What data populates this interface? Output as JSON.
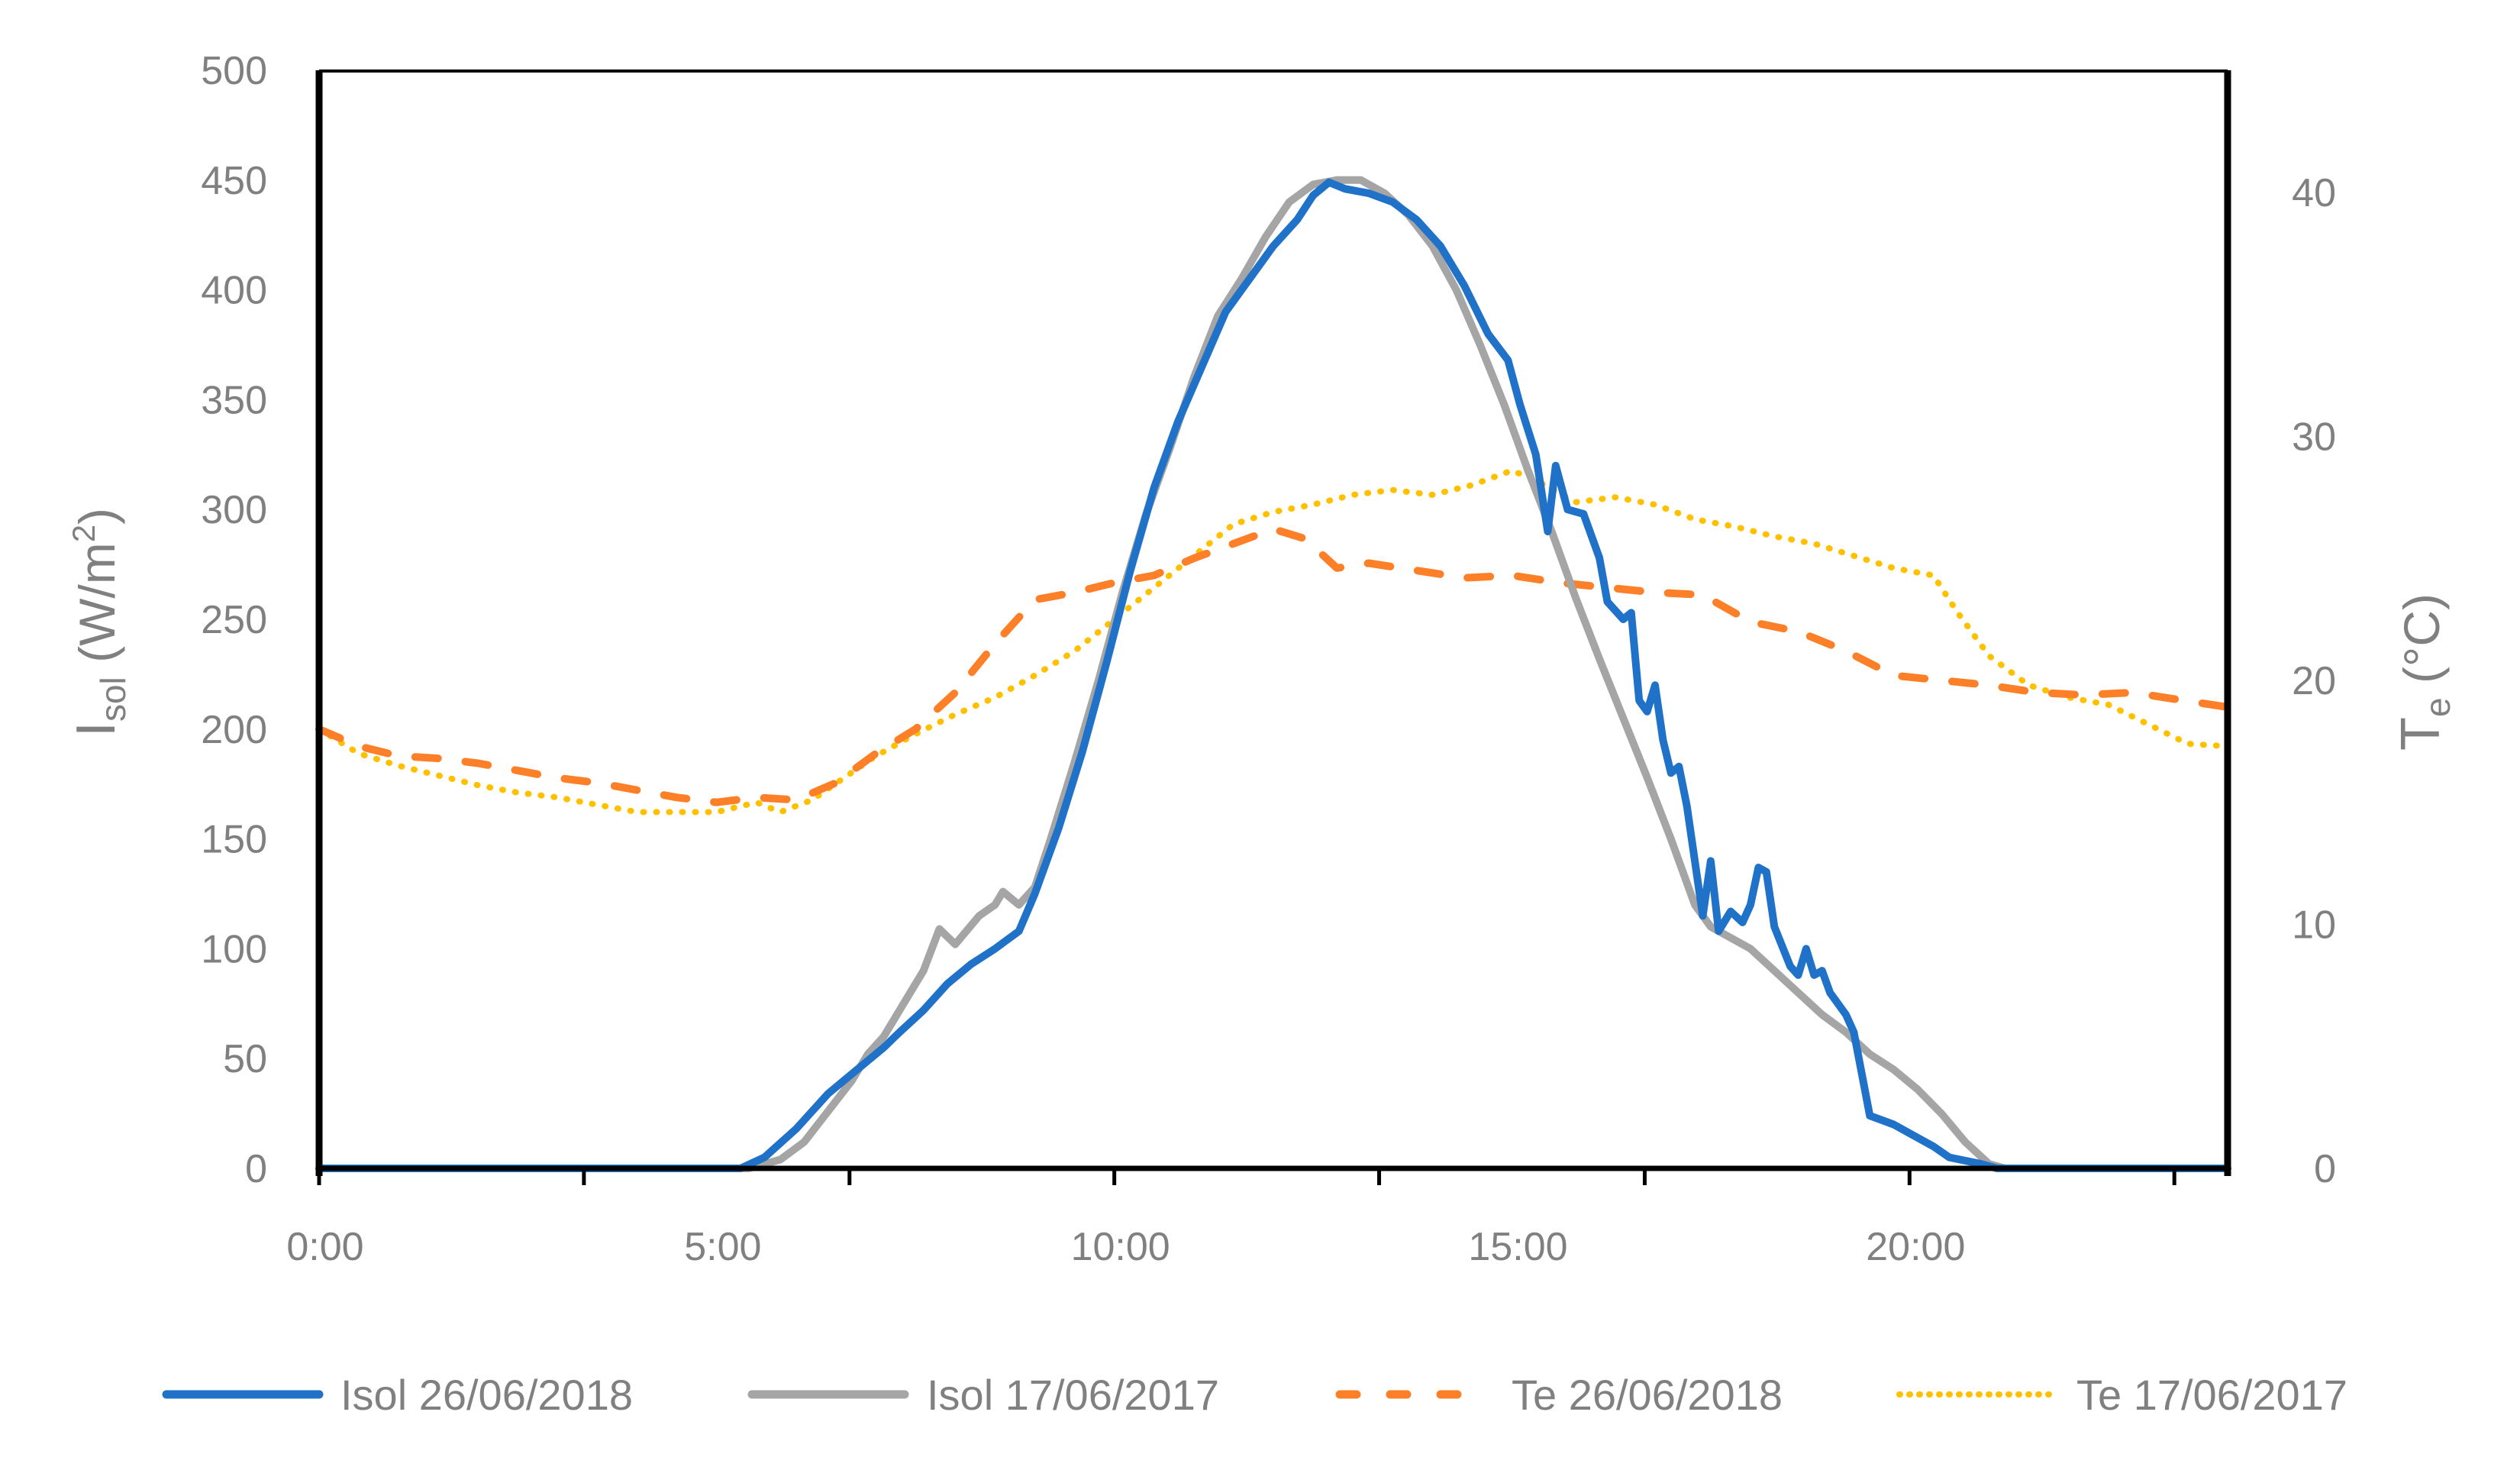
{
  "chart_data": {
    "type": "line",
    "title": "",
    "xlabel": "",
    "ylabel": "Isol (W/m²)",
    "ylabel_main": "I",
    "ylabel_sub": "sol",
    "ylabel_unit": " (W/m",
    "ylabel_sup": "2",
    "ylabel_close": ")",
    "y2label": "Te (°C)",
    "y2label_main": "T",
    "y2label_sub": "e",
    "y2label_unit": "  (°C)",
    "xlim": [
      0,
      24
    ],
    "ylim": [
      0,
      500
    ],
    "y2lim": [
      0,
      45
    ],
    "x_tick_labels": [
      "0:00",
      "5:00",
      "10:00",
      "15:00",
      "20:00"
    ],
    "x_tick_label_hours": [
      0,
      5,
      10,
      15,
      20
    ],
    "x_tick_mark_hours": [
      0,
      3.33,
      6.67,
      10,
      13.33,
      16.67,
      20,
      23.33
    ],
    "y_ticks": [
      0,
      50,
      100,
      150,
      200,
      250,
      300,
      350,
      400,
      450,
      500
    ],
    "y2_ticks": [
      0,
      10,
      20,
      30,
      40
    ],
    "grid": false,
    "legend_position": "bottom",
    "series": [
      {
        "name": "Isol 26/06/2018",
        "axis": "left",
        "color": "#1f72c8",
        "style": "solid",
        "points": [
          [
            0,
            0
          ],
          [
            5.3,
            0
          ],
          [
            5.6,
            5
          ],
          [
            6.0,
            18
          ],
          [
            6.4,
            34
          ],
          [
            6.8,
            46
          ],
          [
            7.1,
            55
          ],
          [
            7.3,
            62
          ],
          [
            7.6,
            72
          ],
          [
            7.9,
            84
          ],
          [
            8.2,
            93
          ],
          [
            8.5,
            100
          ],
          [
            8.8,
            108
          ],
          [
            9.0,
            125
          ],
          [
            9.3,
            155
          ],
          [
            9.6,
            190
          ],
          [
            9.9,
            230
          ],
          [
            10.2,
            272
          ],
          [
            10.5,
            310
          ],
          [
            10.8,
            340
          ],
          [
            11.1,
            365
          ],
          [
            11.4,
            390
          ],
          [
            11.7,
            405
          ],
          [
            12.0,
            420
          ],
          [
            12.3,
            432
          ],
          [
            12.5,
            443
          ],
          [
            12.7,
            449
          ],
          [
            12.9,
            446
          ],
          [
            13.2,
            444
          ],
          [
            13.5,
            440
          ],
          [
            13.8,
            432
          ],
          [
            14.1,
            420
          ],
          [
            14.4,
            402
          ],
          [
            14.7,
            380
          ],
          [
            14.95,
            368
          ],
          [
            15.1,
            348
          ],
          [
            15.3,
            325
          ],
          [
            15.45,
            290
          ],
          [
            15.55,
            320
          ],
          [
            15.7,
            300
          ],
          [
            15.9,
            298
          ],
          [
            16.1,
            278
          ],
          [
            16.2,
            258
          ],
          [
            16.4,
            250
          ],
          [
            16.5,
            253
          ],
          [
            16.6,
            213
          ],
          [
            16.7,
            208
          ],
          [
            16.8,
            220
          ],
          [
            16.9,
            195
          ],
          [
            17.0,
            180
          ],
          [
            17.1,
            183
          ],
          [
            17.2,
            165
          ],
          [
            17.4,
            115
          ],
          [
            17.5,
            140
          ],
          [
            17.6,
            108
          ],
          [
            17.75,
            117
          ],
          [
            17.9,
            112
          ],
          [
            18.0,
            120
          ],
          [
            18.1,
            137
          ],
          [
            18.2,
            135
          ],
          [
            18.3,
            110
          ],
          [
            18.5,
            92
          ],
          [
            18.6,
            88
          ],
          [
            18.7,
            100
          ],
          [
            18.8,
            88
          ],
          [
            18.9,
            90
          ],
          [
            19.0,
            80
          ],
          [
            19.2,
            70
          ],
          [
            19.3,
            62
          ],
          [
            19.5,
            24
          ],
          [
            19.8,
            20
          ],
          [
            20.0,
            16
          ],
          [
            20.3,
            10
          ],
          [
            20.5,
            5
          ],
          [
            20.9,
            2
          ],
          [
            21.1,
            0
          ],
          [
            24,
            0
          ]
        ]
      },
      {
        "name": "Isol 17/06/2017",
        "axis": "left",
        "color": "#a5a5a5",
        "style": "solid",
        "points": [
          [
            0,
            0
          ],
          [
            5.4,
            0
          ],
          [
            5.8,
            4
          ],
          [
            6.1,
            12
          ],
          [
            6.4,
            26
          ],
          [
            6.7,
            40
          ],
          [
            6.9,
            52
          ],
          [
            7.1,
            60
          ],
          [
            7.4,
            78
          ],
          [
            7.6,
            90
          ],
          [
            7.8,
            109
          ],
          [
            8.0,
            102
          ],
          [
            8.3,
            115
          ],
          [
            8.5,
            120
          ],
          [
            8.6,
            126
          ],
          [
            8.8,
            120
          ],
          [
            9.0,
            128
          ],
          [
            9.2,
            150
          ],
          [
            9.5,
            185
          ],
          [
            9.8,
            222
          ],
          [
            10.1,
            262
          ],
          [
            10.4,
            298
          ],
          [
            10.7,
            328
          ],
          [
            11.0,
            360
          ],
          [
            11.3,
            388
          ],
          [
            11.6,
            405
          ],
          [
            11.9,
            424
          ],
          [
            12.2,
            440
          ],
          [
            12.5,
            448
          ],
          [
            12.8,
            450
          ],
          [
            13.1,
            450
          ],
          [
            13.4,
            444
          ],
          [
            13.7,
            434
          ],
          [
            14.0,
            420
          ],
          [
            14.3,
            400
          ],
          [
            14.6,
            375
          ],
          [
            14.9,
            348
          ],
          [
            15.2,
            318
          ],
          [
            15.5,
            290
          ],
          [
            15.8,
            260
          ],
          [
            16.1,
            232
          ],
          [
            16.4,
            205
          ],
          [
            16.7,
            178
          ],
          [
            17.0,
            150
          ],
          [
            17.3,
            120
          ],
          [
            17.5,
            110
          ],
          [
            17.8,
            104
          ],
          [
            18.0,
            100
          ],
          [
            18.3,
            90
          ],
          [
            18.6,
            80
          ],
          [
            18.9,
            70
          ],
          [
            19.2,
            62
          ],
          [
            19.5,
            52
          ],
          [
            19.8,
            45
          ],
          [
            20.1,
            36
          ],
          [
            20.4,
            25
          ],
          [
            20.7,
            12
          ],
          [
            21.0,
            2
          ],
          [
            21.2,
            0
          ],
          [
            24,
            0
          ]
        ]
      },
      {
        "name": "Te 26/06/2018",
        "axis": "right",
        "color": "#fd7f27",
        "style": "dashed",
        "points": [
          [
            0,
            18.0
          ],
          [
            0.5,
            17.3
          ],
          [
            1.0,
            16.9
          ],
          [
            1.5,
            16.8
          ],
          [
            2.0,
            16.6
          ],
          [
            2.5,
            16.3
          ],
          [
            3.0,
            16.0
          ],
          [
            3.5,
            15.8
          ],
          [
            4.0,
            15.5
          ],
          [
            4.5,
            15.2
          ],
          [
            5.0,
            15.0
          ],
          [
            5.5,
            15.2
          ],
          [
            6.0,
            15.1
          ],
          [
            6.5,
            15.8
          ],
          [
            7.0,
            17.0
          ],
          [
            7.5,
            18.0
          ],
          [
            8.0,
            19.5
          ],
          [
            8.5,
            21.5
          ],
          [
            9.0,
            23.3
          ],
          [
            9.5,
            23.6
          ],
          [
            10.0,
            24.0
          ],
          [
            10.5,
            24.3
          ],
          [
            11.0,
            25.0
          ],
          [
            11.5,
            25.6
          ],
          [
            12.0,
            26.2
          ],
          [
            12.4,
            25.8
          ],
          [
            12.8,
            24.6
          ],
          [
            13.2,
            24.8
          ],
          [
            13.8,
            24.5
          ],
          [
            14.4,
            24.2
          ],
          [
            15.0,
            24.3
          ],
          [
            15.6,
            24.0
          ],
          [
            16.2,
            23.8
          ],
          [
            16.8,
            23.6
          ],
          [
            17.4,
            23.5
          ],
          [
            18.0,
            22.4
          ],
          [
            18.6,
            22.0
          ],
          [
            19.2,
            21.2
          ],
          [
            19.8,
            20.2
          ],
          [
            20.4,
            20.0
          ],
          [
            21.0,
            19.8
          ],
          [
            21.6,
            19.5
          ],
          [
            22.2,
            19.4
          ],
          [
            22.8,
            19.5
          ],
          [
            23.4,
            19.2
          ],
          [
            24,
            18.9
          ]
        ]
      },
      {
        "name": "Te 17/06/2017",
        "axis": "right",
        "color": "#ffc000",
        "style": "dotted",
        "points": [
          [
            0,
            18.0
          ],
          [
            0.5,
            17.0
          ],
          [
            1.0,
            16.5
          ],
          [
            1.5,
            16.1
          ],
          [
            2.0,
            15.7
          ],
          [
            2.5,
            15.4
          ],
          [
            3.0,
            15.2
          ],
          [
            3.5,
            14.9
          ],
          [
            4.0,
            14.6
          ],
          [
            4.5,
            14.6
          ],
          [
            5.0,
            14.6
          ],
          [
            5.5,
            15.0
          ],
          [
            5.8,
            14.6
          ],
          [
            6.2,
            15.1
          ],
          [
            6.6,
            16.0
          ],
          [
            7.0,
            16.9
          ],
          [
            7.5,
            17.8
          ],
          [
            8.0,
            18.6
          ],
          [
            8.5,
            19.3
          ],
          [
            9.0,
            20.2
          ],
          [
            9.5,
            21.2
          ],
          [
            10.0,
            22.5
          ],
          [
            10.5,
            23.8
          ],
          [
            11.0,
            25.1
          ],
          [
            11.5,
            26.4
          ],
          [
            12.0,
            26.9
          ],
          [
            12.5,
            27.2
          ],
          [
            13.0,
            27.6
          ],
          [
            13.5,
            27.8
          ],
          [
            14.0,
            27.6
          ],
          [
            14.5,
            28.0
          ],
          [
            15.0,
            28.6
          ],
          [
            15.3,
            28.2
          ],
          [
            15.8,
            27.3
          ],
          [
            16.3,
            27.5
          ],
          [
            16.8,
            27.2
          ],
          [
            17.3,
            26.6
          ],
          [
            17.8,
            26.3
          ],
          [
            18.3,
            25.9
          ],
          [
            18.8,
            25.6
          ],
          [
            19.3,
            25.1
          ],
          [
            19.8,
            24.6
          ],
          [
            20.3,
            24.3
          ],
          [
            20.6,
            22.8
          ],
          [
            21.0,
            21.0
          ],
          [
            21.5,
            19.8
          ],
          [
            22.0,
            19.3
          ],
          [
            22.5,
            19.0
          ],
          [
            23.0,
            18.2
          ],
          [
            23.5,
            17.4
          ],
          [
            24,
            17.3
          ]
        ]
      }
    ]
  },
  "legend": {
    "items": [
      {
        "label": "Isol 26/06/2018",
        "color": "#1f72c8"
      },
      {
        "label": "Isol 17/06/2017",
        "color": "#a5a5a5"
      },
      {
        "label": "Te 26/06/2018",
        "color": "#fd7f27"
      },
      {
        "label": "Te 17/06/2017",
        "color": "#ffc000"
      }
    ]
  }
}
